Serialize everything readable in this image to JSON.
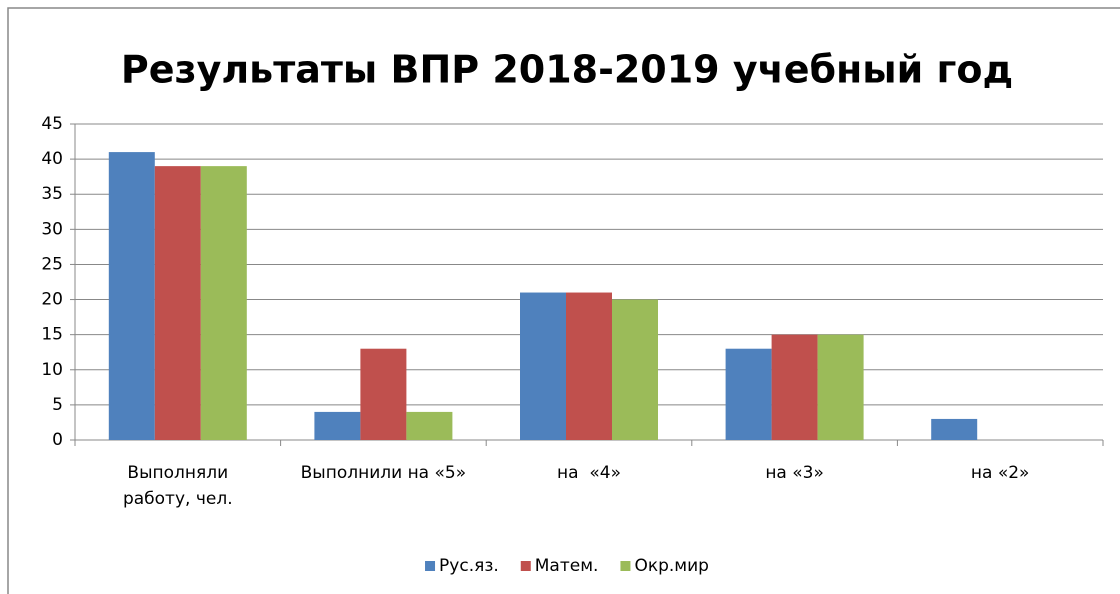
{
  "chart_data": {
    "type": "bar",
    "title": "Результаты ВПР 2018-2019 учебный год",
    "categories": [
      "Выполняли работу, чел.",
      "Выполнили на «5»",
      "на  «4»",
      "на «3»",
      "на «2»"
    ],
    "series": [
      {
        "name": "Рус.яз.",
        "color": "#4f81bd",
        "values": [
          41,
          4,
          21,
          13,
          3
        ]
      },
      {
        "name": "Матем.",
        "color": "#c0504d",
        "values": [
          39,
          13,
          21,
          15,
          0
        ]
      },
      {
        "name": "Окр.мир",
        "color": "#9bbb59",
        "values": [
          39,
          4,
          20,
          15,
          0
        ]
      }
    ],
    "ylim": [
      0,
      45
    ],
    "yticks": [
      0,
      5,
      10,
      15,
      20,
      25,
      30,
      35,
      40,
      45
    ],
    "grid": true,
    "legend": "bottom"
  }
}
